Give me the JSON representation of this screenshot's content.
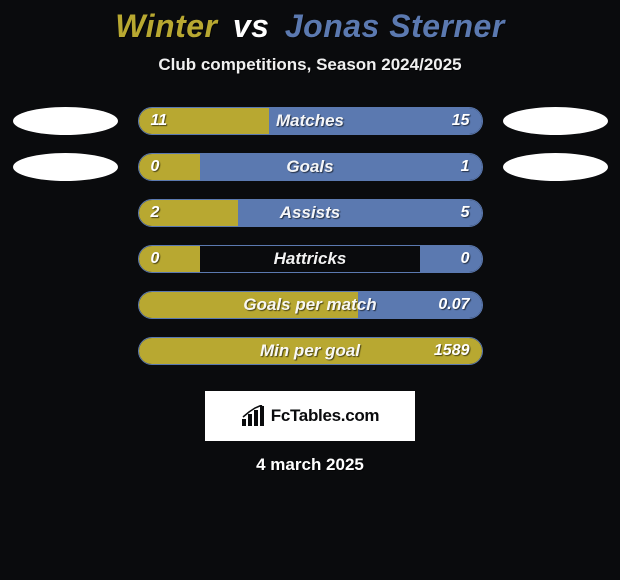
{
  "title": {
    "player1": "Winter",
    "vs": "vs",
    "player2": "Jonas Sterner",
    "player1_color": "#b8a831",
    "vs_color": "#ffffff",
    "player2_color": "#5b79b0"
  },
  "subtitle": "Club competitions, Season 2024/2025",
  "colors": {
    "player1_bar": "#b8a831",
    "player2_bar": "#5b79b0",
    "track": "#0a0b0d",
    "flag_left": "#ffffff",
    "flag_right": "#ffffff",
    "brand_bg": "#ffffff",
    "brand_fg": "#0a0b0d"
  },
  "flag_rows": [
    0,
    1
  ],
  "stats": [
    {
      "label": "Matches",
      "left_val": "11",
      "right_val": "15",
      "left_pct": 38,
      "right_pct": 62
    },
    {
      "label": "Goals",
      "left_val": "0",
      "right_val": "1",
      "left_pct": 18,
      "right_pct": 82
    },
    {
      "label": "Assists",
      "left_val": "2",
      "right_val": "5",
      "left_pct": 29,
      "right_pct": 71
    },
    {
      "label": "Hattricks",
      "left_val": "0",
      "right_val": "0",
      "left_pct": 18,
      "right_pct": 18
    },
    {
      "label": "Goals per match",
      "left_val": "",
      "right_val": "0.07",
      "left_pct": 64,
      "right_pct": 36
    },
    {
      "label": "Min per goal",
      "left_val": "",
      "right_val": "1589",
      "left_pct": 100,
      "right_pct": 0
    }
  ],
  "brand": "FcTables.com",
  "date": "4 march 2025"
}
